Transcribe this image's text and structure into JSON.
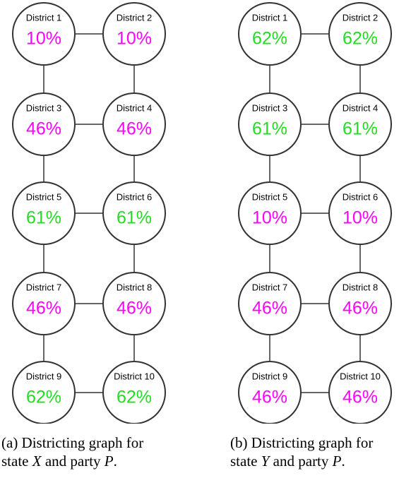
{
  "graphs": [
    {
      "nodes": [
        {
          "label": "District 1",
          "value": "10%",
          "color": "#ff00ff"
        },
        {
          "label": "District 2",
          "value": "10%",
          "color": "#ff00ff"
        },
        {
          "label": "District 3",
          "value": "46%",
          "color": "#ff00ff"
        },
        {
          "label": "District 4",
          "value": "46%",
          "color": "#ff00ff"
        },
        {
          "label": "District 5",
          "value": "61%",
          "color": "#22dd22"
        },
        {
          "label": "District 6",
          "value": "61%",
          "color": "#22dd22"
        },
        {
          "label": "District 7",
          "value": "46%",
          "color": "#ff00ff"
        },
        {
          "label": "District 8",
          "value": "46%",
          "color": "#ff00ff"
        },
        {
          "label": "District 9",
          "value": "62%",
          "color": "#22dd22"
        },
        {
          "label": "District 10",
          "value": "62%",
          "color": "#22dd22"
        }
      ],
      "caption": [
        "(a) Districting graph for state ",
        "X",
        " and party ",
        "P",
        "."
      ]
    },
    {
      "nodes": [
        {
          "label": "District 1",
          "value": "62%",
          "color": "#22dd22"
        },
        {
          "label": "District 2",
          "value": "62%",
          "color": "#22dd22"
        },
        {
          "label": "District 3",
          "value": "61%",
          "color": "#22dd22"
        },
        {
          "label": "District 4",
          "value": "61%",
          "color": "#22dd22"
        },
        {
          "label": "District 5",
          "value": "10%",
          "color": "#ff00ff"
        },
        {
          "label": "District 6",
          "value": "10%",
          "color": "#ff00ff"
        },
        {
          "label": "District 7",
          "value": "46%",
          "color": "#ff00ff"
        },
        {
          "label": "District 8",
          "value": "46%",
          "color": "#ff00ff"
        },
        {
          "label": "District 9",
          "value": "46%",
          "color": "#ff00ff"
        },
        {
          "label": "District 10",
          "value": "46%",
          "color": "#ff00ff"
        }
      ],
      "caption": [
        "(b) Districting graph for state ",
        "Y",
        " and party ",
        "P",
        "."
      ]
    }
  ]
}
